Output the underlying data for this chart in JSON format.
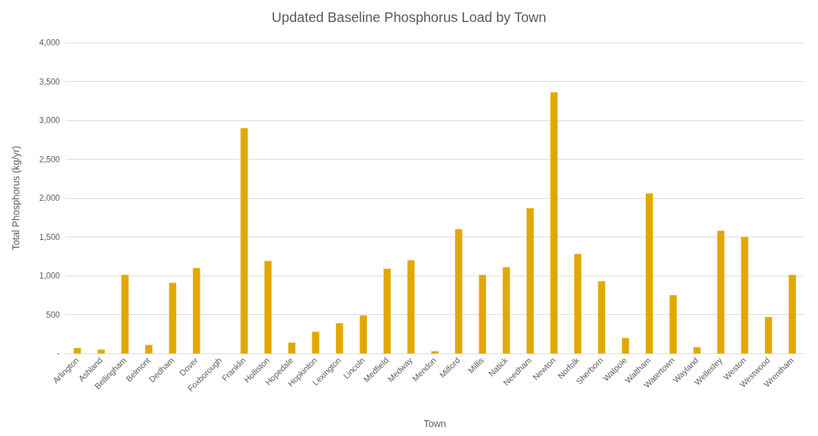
{
  "chart_data": {
    "type": "bar",
    "title": "Updated Baseline Phosphorus Load by Town",
    "xlabel": "Town",
    "ylabel": "Total Phosphorus (kg/yr)",
    "categories": [
      "Arlington",
      "Ashland",
      "Bellingham",
      "Belmont",
      "Dedham",
      "Dover",
      "Foxborough",
      "Franklin",
      "Holliston",
      "Hopedale",
      "Hopkinton",
      "Lexington",
      "Lincoln",
      "Medfield",
      "Medway",
      "Mendon",
      "Milford",
      "Millis",
      "Natick",
      "Needham",
      "Newton",
      "Norfolk",
      "Sherborn",
      "Walpole",
      "Waltham",
      "Watertown",
      "Wayland",
      "Wellesley",
      "Weston",
      "Westwood",
      "Wrentham"
    ],
    "values": [
      70,
      50,
      1010,
      110,
      910,
      1100,
      0,
      2900,
      1190,
      140,
      280,
      390,
      490,
      1090,
      1200,
      30,
      1600,
      1010,
      1110,
      1870,
      3360,
      1280,
      930,
      200,
      2060,
      750,
      80,
      1580,
      1500,
      470,
      1010
    ],
    "color": "#e3a800",
    "ylim": [
      0,
      4000
    ],
    "yticks": [
      {
        "value": 0,
        "label": "-"
      },
      {
        "value": 500,
        "label": "500"
      },
      {
        "value": 1000,
        "label": "1,000"
      },
      {
        "value": 1500,
        "label": "1,500"
      },
      {
        "value": 2000,
        "label": "2,000"
      },
      {
        "value": 2500,
        "label": "2,500"
      },
      {
        "value": 3000,
        "label": "3,000"
      },
      {
        "value": 3500,
        "label": "3,500"
      },
      {
        "value": 4000,
        "label": "4,000"
      }
    ],
    "grid": "y"
  }
}
